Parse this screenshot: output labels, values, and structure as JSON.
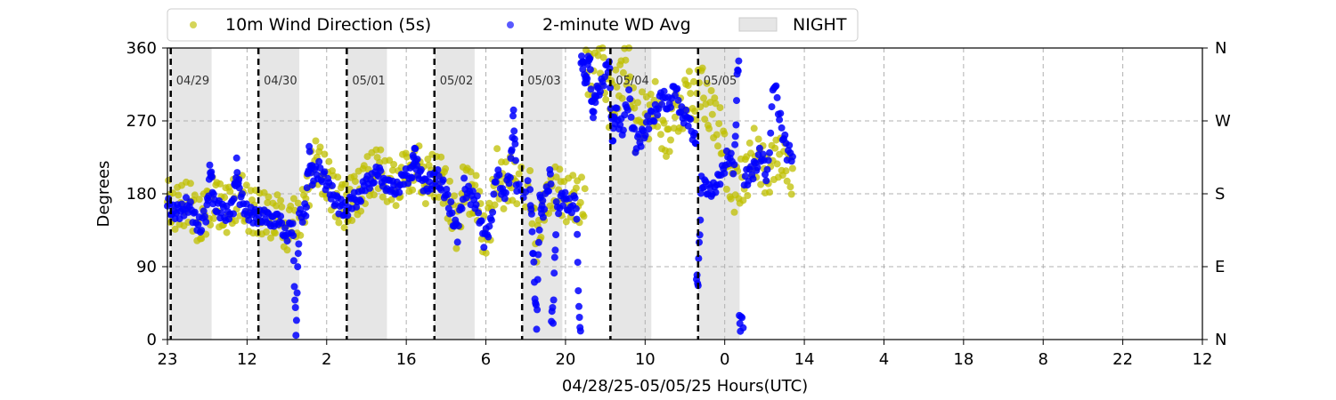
{
  "chart_data": {
    "type": "scatter",
    "title": "",
    "xlabel": "04/28/25-05/05/25  Hours(UTC)",
    "ylabel": "Degrees",
    "x_ticks": [
      "23",
      "12",
      "2",
      "16",
      "6",
      "20",
      "10",
      "0",
      "14",
      "4",
      "18",
      "8",
      "22",
      "12"
    ],
    "x_range_hours": [
      0,
      157
    ],
    "x_start": "04/28/25 23:00 UTC",
    "ylim": [
      0,
      360
    ],
    "y_ticks": [
      0,
      90,
      180,
      270,
      360
    ],
    "y2_ticks": [
      "N",
      "E",
      "S",
      "W",
      "N"
    ],
    "grid": true,
    "legend_position": "top",
    "legend": [
      {
        "label": "10m Wind Direction (5s)",
        "color": "#bfbf00",
        "marker": "circle"
      },
      {
        "label": "2-minute WD Avg",
        "color": "#0000ff",
        "marker": "circle"
      },
      {
        "label": "NIGHT",
        "color": "#e6e6e6",
        "marker": "rect"
      }
    ],
    "day_markers": [
      {
        "hour": 0.5,
        "label": "04/29"
      },
      {
        "hour": 13.8,
        "label": "04/30"
      },
      {
        "hour": 27.2,
        "label": "05/01"
      },
      {
        "hour": 40.5,
        "label": "05/02"
      },
      {
        "hour": 53.8,
        "label": "05/03"
      },
      {
        "hour": 67.2,
        "label": "05/04"
      },
      {
        "hour": 80.5,
        "label": "05/05"
      }
    ],
    "night_periods": [
      [
        0.5,
        6.7
      ],
      [
        13.8,
        20.0
      ],
      [
        27.2,
        33.3
      ],
      [
        40.5,
        46.6
      ],
      [
        53.8,
        59.9
      ],
      [
        67.2,
        73.4
      ],
      [
        80.5,
        86.8
      ]
    ],
    "series": [
      {
        "name": "2-minute WD Avg",
        "x": [
          0,
          1,
          2,
          3,
          4,
          5,
          6,
          6.5,
          7,
          8,
          9,
          10,
          10.5,
          11,
          12,
          13,
          14,
          15,
          16,
          17,
          18,
          19,
          19.5,
          20,
          21,
          21.5,
          22,
          23,
          24,
          25,
          26,
          27,
          28,
          29,
          30,
          31,
          32,
          33,
          34,
          35,
          36,
          37,
          37.5,
          38,
          39,
          40,
          41,
          42,
          43,
          44,
          45,
          46,
          47,
          48,
          49,
          50,
          51,
          52,
          52.5,
          53,
          55,
          55.5,
          56,
          56.5,
          57,
          58,
          58.5,
          59,
          60,
          61,
          62,
          62.5,
          63,
          63.5,
          64,
          64.5,
          65,
          66,
          67,
          67.5,
          68,
          69,
          70,
          71,
          72,
          73,
          74,
          75,
          76,
          77,
          78,
          79,
          80,
          80.5,
          81,
          82,
          83,
          84,
          85,
          86,
          86.5,
          87,
          88,
          89,
          90,
          91,
          92,
          93,
          94
        ],
        "values": [
          165,
          160,
          155,
          170,
          150,
          140,
          158,
          215,
          170,
          160,
          155,
          165,
          215,
          175,
          160,
          150,
          155,
          148,
          150,
          145,
          130,
          140,
          10,
          150,
          160,
          230,
          200,
          210,
          195,
          180,
          165,
          160,
          170,
          175,
          190,
          200,
          205,
          195,
          185,
          190,
          200,
          205,
          230,
          210,
          190,
          195,
          200,
          185,
          160,
          130,
          190,
          175,
          170,
          120,
          145,
          205,
          180,
          200,
          285,
          180,
          190,
          100,
          20,
          170,
          160,
          200,
          30,
          160,
          175,
          165,
          170,
          20,
          340,
          320,
          350,
          280,
          300,
          320,
          340,
          250,
          280,
          260,
          300,
          240,
          250,
          270,
          280,
          300,
          290,
          310,
          280,
          270,
          250,
          70,
          200,
          180,
          190,
          200,
          230,
          210,
          340,
          20,
          200,
          210,
          230,
          200,
          320,
          270,
          230
        ]
      },
      {
        "name": "10m Wind Direction (5s)",
        "x": [
          0,
          1,
          2,
          3,
          4,
          5,
          6,
          7,
          8,
          9,
          10,
          11,
          12,
          13,
          14,
          15,
          16,
          17,
          18,
          19,
          20,
          21,
          22,
          23,
          24,
          25,
          26,
          27,
          28,
          29,
          30,
          31,
          32,
          33,
          34,
          35,
          36,
          37,
          38,
          39,
          40,
          41,
          42,
          43,
          44,
          45,
          46,
          47,
          48,
          49,
          50,
          51,
          52,
          53,
          55,
          56,
          57,
          58,
          59,
          60,
          61,
          62,
          63,
          64,
          65,
          66,
          67,
          68,
          69,
          70,
          71,
          72,
          73,
          74,
          75,
          76,
          77,
          78,
          79,
          80,
          81,
          82,
          83,
          84,
          85,
          86,
          87,
          88,
          89,
          90,
          91,
          92,
          93,
          94
        ],
        "values": [
          170,
          165,
          160,
          175,
          155,
          145,
          160,
          175,
          165,
          160,
          170,
          180,
          165,
          155,
          160,
          150,
          155,
          150,
          135,
          145,
          155,
          165,
          220,
          215,
          200,
          185,
          170,
          165,
          175,
          180,
          195,
          205,
          210,
          200,
          190,
          195,
          205,
          210,
          215,
          195,
          200,
          205,
          190,
          165,
          135,
          195,
          180,
          175,
          125,
          150,
          210,
          185,
          205,
          185,
          195,
          105,
          175,
          165,
          205,
          165,
          180,
          170,
          175,
          330,
          325,
          345,
          290,
          305,
          325,
          345,
          255,
          285,
          265,
          305,
          245,
          255,
          275,
          285,
          305,
          295,
          315,
          285,
          275,
          255,
          205,
          185,
          195,
          205,
          235,
          215,
          205,
          215,
          235,
          205
        ]
      }
    ]
  }
}
